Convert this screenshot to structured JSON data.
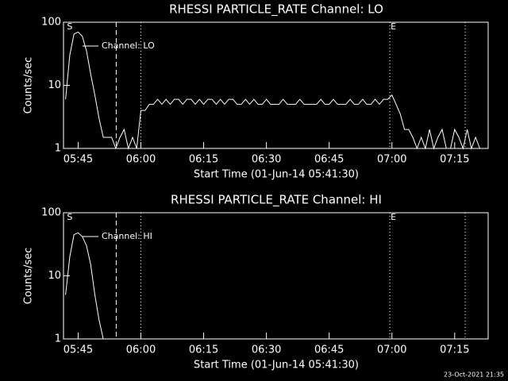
{
  "chart_data": [
    {
      "type": "line",
      "title": "RHESSI PARTICLE_RATE Channel: LO",
      "x_label": "Start Time (01-Jun-14 05:41:30)",
      "y_label": "Counts/sec",
      "log_y": true,
      "ylim": [
        1,
        100
      ],
      "yticks": [
        1,
        10,
        100
      ],
      "xlim": [
        "05:41:30",
        "07:23:00"
      ],
      "xticks": [
        "05:45",
        "06:00",
        "06:15",
        "06:30",
        "06:45",
        "07:00",
        "07:15"
      ],
      "markers": [
        {
          "time": "05:54:06",
          "style": "dashed"
        },
        {
          "time": "06:00:00",
          "style": "dotted"
        },
        {
          "time": "06:59:30",
          "style": "dotted"
        },
        {
          "time": "07:17:30",
          "style": "dotted"
        }
      ],
      "start_label": "S",
      "end_label": "E",
      "x": [
        "05:42",
        "05:43",
        "05:44",
        "05:45",
        "05:46",
        "05:47",
        "05:48",
        "05:49",
        "05:50",
        "05:51",
        "05:52",
        "05:53",
        "05:54",
        "05:55",
        "05:56",
        "05:57",
        "05:58",
        "05:59",
        "06:00",
        "06:01",
        "06:02",
        "06:03",
        "06:04",
        "06:05",
        "06:06",
        "06:07",
        "06:08",
        "06:09",
        "06:10",
        "06:11",
        "06:12",
        "06:13",
        "06:14",
        "06:15",
        "06:16",
        "06:17",
        "06:18",
        "06:19",
        "06:20",
        "06:21",
        "06:22",
        "06:23",
        "06:24",
        "06:25",
        "06:26",
        "06:27",
        "06:28",
        "06:29",
        "06:30",
        "06:31",
        "06:32",
        "06:33",
        "06:34",
        "06:35",
        "06:36",
        "06:37",
        "06:38",
        "06:39",
        "06:40",
        "06:41",
        "06:42",
        "06:43",
        "06:44",
        "06:45",
        "06:46",
        "06:47",
        "06:48",
        "06:49",
        "06:50",
        "06:51",
        "06:52",
        "06:53",
        "06:54",
        "06:55",
        "06:56",
        "06:57",
        "06:58",
        "06:59",
        "07:00",
        "07:01",
        "07:02",
        "07:03",
        "07:04",
        "07:05",
        "07:06",
        "07:07",
        "07:08",
        "07:09",
        "07:10",
        "07:11",
        "07:12",
        "07:13",
        "07:14",
        "07:15",
        "07:16",
        "07:17",
        "07:18",
        "07:19",
        "07:20",
        "07:21",
        "07:22"
      ],
      "series": [
        {
          "name": "Channel: LO",
          "color": "#ffffff",
          "values": [
            6,
            30,
            65,
            70,
            60,
            35,
            15,
            7,
            3,
            1.5,
            1.5,
            1.5,
            1,
            1.5,
            2,
            1,
            1.5,
            1,
            4,
            4,
            5,
            5,
            6,
            5,
            6,
            5,
            6,
            6,
            5,
            6,
            6,
            5,
            6,
            5,
            6,
            6,
            5,
            6,
            5,
            6,
            6,
            5,
            5,
            6,
            5,
            6,
            5,
            5,
            6,
            5,
            5,
            5,
            6,
            5,
            5,
            5,
            6,
            5,
            5,
            5,
            5,
            6,
            5,
            5,
            6,
            5,
            5,
            5,
            6,
            5,
            5,
            6,
            5,
            5,
            6,
            5,
            6,
            6,
            7,
            5,
            3.5,
            2,
            2,
            1.5,
            1,
            1.5,
            1,
            2,
            1,
            1.5,
            2,
            1,
            1,
            2,
            1.5,
            1,
            2,
            1,
            1.5,
            1,
            1
          ]
        }
      ]
    },
    {
      "type": "line",
      "title": "RHESSI PARTICLE_RATE Channel: HI",
      "x_label": "Start Time (01-Jun-14 05:41:30)",
      "y_label": "Counts/sec",
      "log_y": true,
      "ylim": [
        1,
        100
      ],
      "yticks": [
        1,
        10,
        100
      ],
      "xlim": [
        "05:41:30",
        "07:23:00"
      ],
      "xticks": [
        "05:45",
        "06:00",
        "06:15",
        "06:30",
        "06:45",
        "07:00",
        "07:15"
      ],
      "markers": [
        {
          "time": "05:54:06",
          "style": "dashed"
        },
        {
          "time": "06:00:00",
          "style": "dotted"
        },
        {
          "time": "06:59:30",
          "style": "dotted"
        },
        {
          "time": "07:17:30",
          "style": "dotted"
        }
      ],
      "start_label": "S",
      "end_label": "E",
      "x": [
        "05:42",
        "05:43",
        "05:44",
        "05:45",
        "05:46",
        "05:47",
        "05:48",
        "05:49",
        "05:50",
        "05:51"
      ],
      "series": [
        {
          "name": "Channel: HI",
          "color": "#ffffff",
          "values": [
            5,
            20,
            45,
            48,
            42,
            30,
            15,
            5,
            2,
            1
          ]
        }
      ]
    }
  ],
  "footer": "23-Oct-2021 21:35"
}
